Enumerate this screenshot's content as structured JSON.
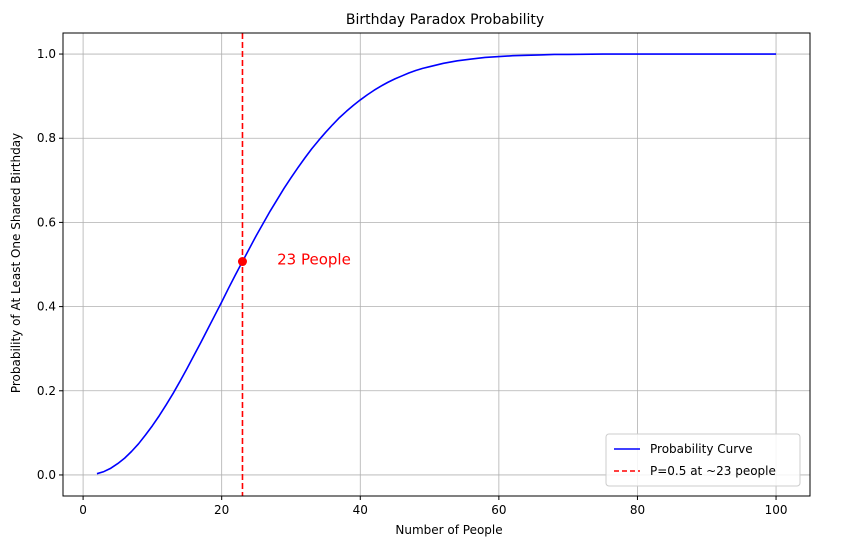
{
  "chart_data": {
    "type": "line",
    "title": "Birthday Paradox Probability",
    "xlabel": "Number of People",
    "ylabel": "Probability of At Least One Shared Birthday",
    "xlim": [
      -2.9,
      104.9
    ],
    "ylim": [
      -0.05,
      1.05
    ],
    "x_ticks": [
      0,
      20,
      40,
      60,
      80,
      100
    ],
    "y_ticks": [
      0.0,
      0.2,
      0.4,
      0.6,
      0.8,
      1.0
    ],
    "x_tick_labels": [
      "0",
      "20",
      "40",
      "60",
      "80",
      "100"
    ],
    "y_tick_labels": [
      "0.0",
      "0.2",
      "0.4",
      "0.6",
      "0.8",
      "1.0"
    ],
    "grid": true,
    "legend_position": "bottom-right",
    "series": [
      {
        "name": "Probability Curve",
        "color": "#0000ff",
        "style": "solid",
        "x": [
          2,
          3,
          4,
          5,
          6,
          7,
          8,
          9,
          10,
          11,
          12,
          13,
          14,
          15,
          16,
          17,
          18,
          19,
          20,
          21,
          22,
          23,
          24,
          25,
          26,
          27,
          28,
          29,
          30,
          31,
          32,
          33,
          34,
          35,
          36,
          37,
          38,
          39,
          40,
          41,
          42,
          43,
          44,
          45,
          46,
          47,
          48,
          49,
          50,
          52,
          54,
          56,
          58,
          60,
          62,
          64,
          66,
          68,
          70,
          75,
          80,
          85,
          90,
          95,
          100
        ],
        "y": [
          0.003,
          0.008,
          0.016,
          0.027,
          0.04,
          0.056,
          0.074,
          0.095,
          0.117,
          0.141,
          0.167,
          0.194,
          0.223,
          0.253,
          0.284,
          0.315,
          0.347,
          0.379,
          0.411,
          0.444,
          0.476,
          0.507,
          0.538,
          0.569,
          0.598,
          0.627,
          0.654,
          0.681,
          0.706,
          0.73,
          0.753,
          0.775,
          0.795,
          0.814,
          0.832,
          0.849,
          0.864,
          0.878,
          0.891,
          0.903,
          0.914,
          0.924,
          0.933,
          0.941,
          0.948,
          0.955,
          0.961,
          0.966,
          0.97,
          0.978,
          0.984,
          0.988,
          0.992,
          0.994,
          0.996,
          0.997,
          0.998,
          0.999,
          0.999,
          1.0,
          1.0,
          1.0,
          1.0,
          1.0,
          1.0
        ]
      },
      {
        "name": "P=0.5 at ~23 people",
        "color": "#ff0000",
        "style": "dashed",
        "type": "vline",
        "x_value": 23
      }
    ],
    "marker": {
      "x": 23,
      "y": 0.507,
      "color": "#ff0000"
    },
    "annotation": {
      "text": "23 People",
      "x": 28,
      "y": 0.507,
      "color": "#ff0000"
    }
  }
}
